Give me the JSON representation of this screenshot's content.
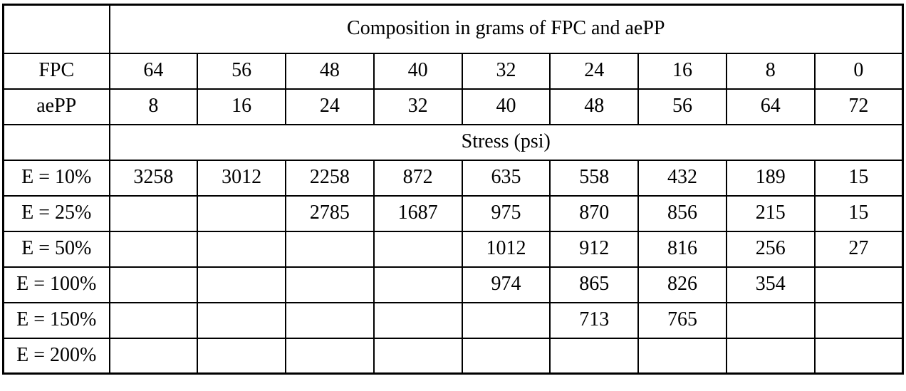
{
  "table": {
    "composition_header": "Composition in grams of FPC and aePP",
    "stress_header": "Stress (psi)",
    "composition_rows": [
      {
        "label": "FPC",
        "cells": [
          "64",
          "56",
          "48",
          "40",
          "32",
          "24",
          "16",
          "8",
          "0"
        ]
      },
      {
        "label": "aePP",
        "cells": [
          "8",
          "16",
          "24",
          "32",
          "40",
          "48",
          "56",
          "64",
          "72"
        ]
      }
    ],
    "stress_rows": [
      {
        "label": "E = 10%",
        "cells": [
          "3258",
          "3012",
          "2258",
          "872",
          "635",
          "558",
          "432",
          "189",
          "15"
        ]
      },
      {
        "label": "E = 25%",
        "cells": [
          null,
          null,
          "2785",
          "1687",
          "975",
          "870",
          "856",
          "215",
          "15"
        ]
      },
      {
        "label": "E = 50%",
        "cells": [
          null,
          null,
          null,
          null,
          "1012",
          "912",
          "816",
          "256",
          "27"
        ]
      },
      {
        "label": "E = 100%",
        "cells": [
          null,
          null,
          null,
          null,
          "974",
          "865",
          "826",
          "354",
          null
        ]
      },
      {
        "label": "E = 150%",
        "cells": [
          null,
          null,
          null,
          null,
          null,
          "713",
          "765",
          null,
          null
        ]
      },
      {
        "label": "E = 200%",
        "cells": [
          null,
          null,
          null,
          null,
          null,
          null,
          null,
          null,
          null
        ]
      }
    ]
  },
  "colors": {
    "grid": "#000000",
    "redacted_cell": "#000000",
    "background": "#ffffff"
  }
}
